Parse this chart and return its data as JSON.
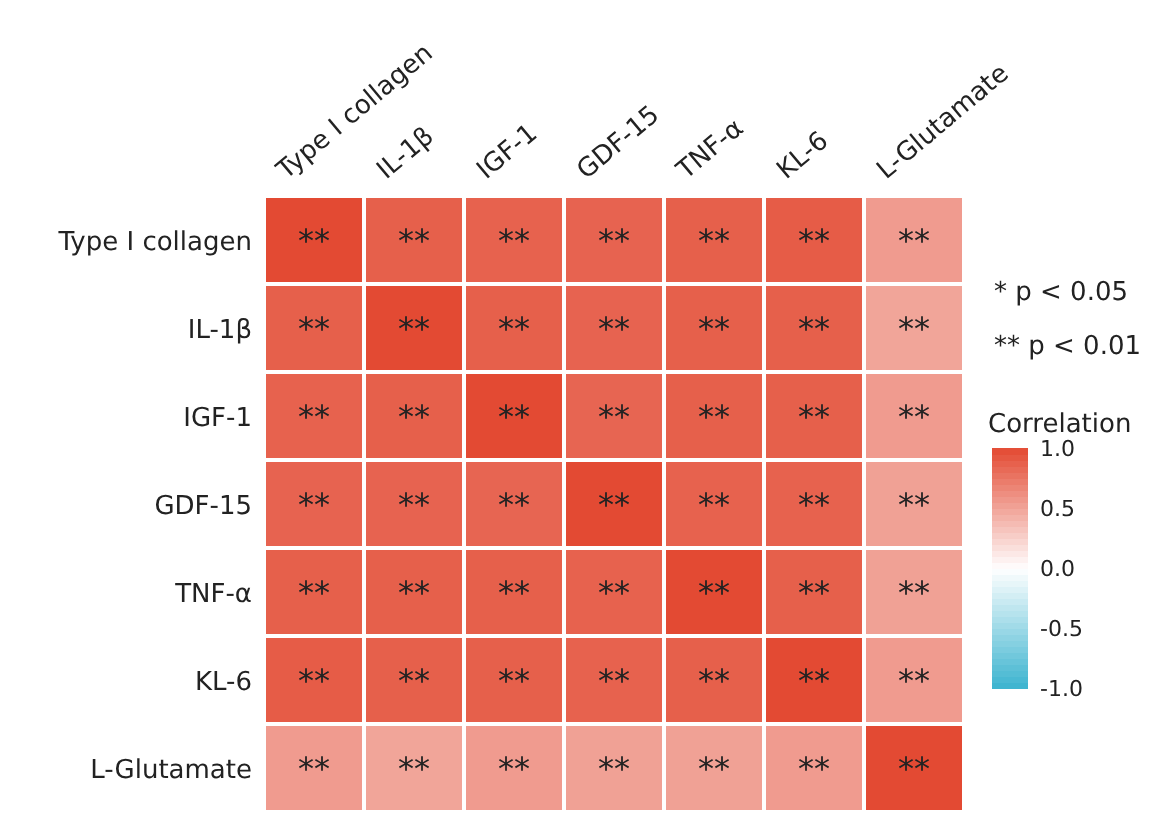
{
  "chart_data": {
    "type": "heatmap",
    "categories": [
      "Type I collagen",
      "IL-1β",
      "IGF-1",
      "GDF-15",
      "TNF-α",
      "KL-6",
      "L-Glutamate"
    ],
    "y_categories": [
      "Type I collagen",
      "IL-1β",
      "IGF-1",
      "GDF-15",
      "TNF-α",
      "KL-6",
      "L-Glutamate"
    ],
    "cells": [
      [
        1,
        0.88,
        0.87,
        0.86,
        0.88,
        0.9,
        0.55
      ],
      [
        0.88,
        1,
        0.88,
        0.86,
        0.88,
        0.88,
        0.5
      ],
      [
        0.87,
        0.88,
        1,
        0.85,
        0.88,
        0.88,
        0.55
      ],
      [
        0.86,
        0.86,
        0.85,
        1,
        0.87,
        0.87,
        0.52
      ],
      [
        0.88,
        0.88,
        0.88,
        0.87,
        1,
        0.88,
        0.52
      ],
      [
        0.9,
        0.88,
        0.88,
        0.87,
        0.88,
        1,
        0.55
      ],
      [
        0.55,
        0.5,
        0.55,
        0.52,
        0.52,
        0.55,
        1
      ]
    ],
    "cell_labels": [
      [
        "**",
        "**",
        "**",
        "**",
        "**",
        "**",
        "**"
      ],
      [
        "**",
        "**",
        "**",
        "**",
        "**",
        "**",
        "**"
      ],
      [
        "**",
        "**",
        "**",
        "**",
        "**",
        "**",
        "**"
      ],
      [
        "**",
        "**",
        "**",
        "**",
        "**",
        "**",
        "**"
      ],
      [
        "**",
        "**",
        "**",
        "**",
        "**",
        "**",
        "**"
      ],
      [
        "**",
        "**",
        "**",
        "**",
        "**",
        "**",
        "**"
      ],
      [
        "**",
        "**",
        "**",
        "**",
        "**",
        "**",
        "**"
      ]
    ],
    "clabel": "Correlation",
    "clim": [
      -1,
      1
    ],
    "cticks": [
      {
        "value": 1,
        "label": "1.0"
      },
      {
        "value": 0.5,
        "label": "0.5"
      },
      {
        "value": 0,
        "label": "0.0"
      },
      {
        "value": -0.5,
        "label": "-0.5"
      },
      {
        "value": -1,
        "label": "-1.0"
      }
    ],
    "annotations": [
      "* p < 0.05",
      "** p < 0.01"
    ]
  }
}
